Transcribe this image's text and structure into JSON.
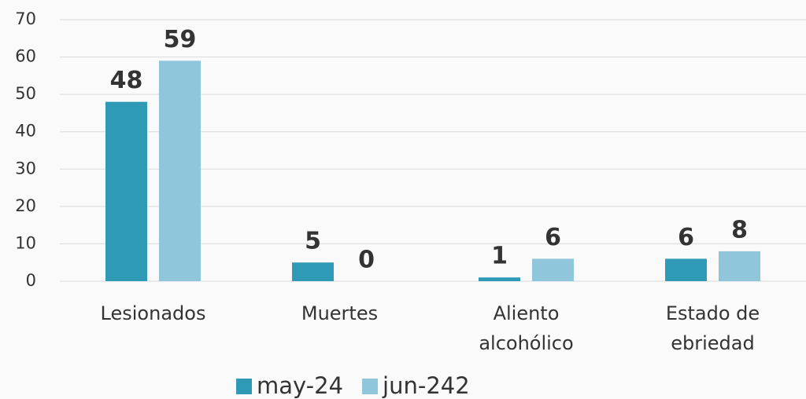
{
  "chart_data": {
    "type": "bar",
    "categories": [
      "Lesionados",
      "Muertes",
      "Aliento alcohólico",
      "Estado de ebriedad"
    ],
    "series": [
      {
        "name": "may-24",
        "color": "#2e9ab5",
        "values": [
          48,
          5,
          1,
          6
        ]
      },
      {
        "name": "jun-242",
        "color": "#8fc6dc",
        "values": [
          59,
          0,
          6,
          8
        ]
      }
    ],
    "ylim": [
      0,
      70
    ],
    "yticks": [
      0,
      10,
      20,
      30,
      40,
      50,
      60,
      70
    ],
    "grid": true
  }
}
